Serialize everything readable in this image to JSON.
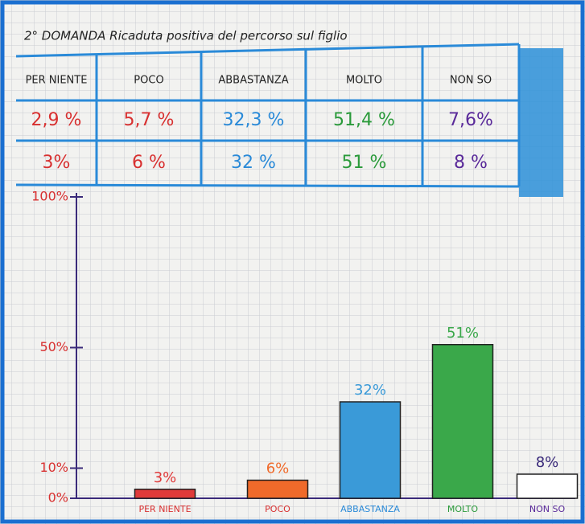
{
  "table": {
    "title": "2° DOMANDA  Ricaduta positiva del percorso sul figlio",
    "header": [
      "PER NIENTE",
      "POCO",
      "ABBASTANZA",
      "MOLTO",
      "NON SO"
    ],
    "rows": [
      [
        "2,9 %",
        "5,7 %",
        "32,3 %",
        "51,4 %",
        "7,6%"
      ],
      [
        "3%",
        "6 %",
        "32 %",
        "51 %",
        "8 %"
      ]
    ]
  },
  "chart_data": {
    "type": "bar",
    "categories": [
      "PER NIENTE",
      "POCO",
      "ABBASTANZA",
      "MOLTO",
      "NON SO"
    ],
    "values": [
      3,
      6,
      32,
      51,
      8
    ],
    "value_labels": [
      "3%",
      "6%",
      "32%",
      "51%",
      "8%"
    ],
    "colors": [
      "#e03a3a",
      "#f06a2a",
      "#3a9ad8",
      "#3aa84a",
      "#ffffff"
    ],
    "ylim": [
      0,
      100
    ],
    "yticks": [
      {
        "value": 0,
        "label": "0%"
      },
      {
        "value": 10,
        "label": "10%"
      },
      {
        "value": 50,
        "label": "50%"
      },
      {
        "value": 100,
        "label": "100%"
      }
    ]
  }
}
